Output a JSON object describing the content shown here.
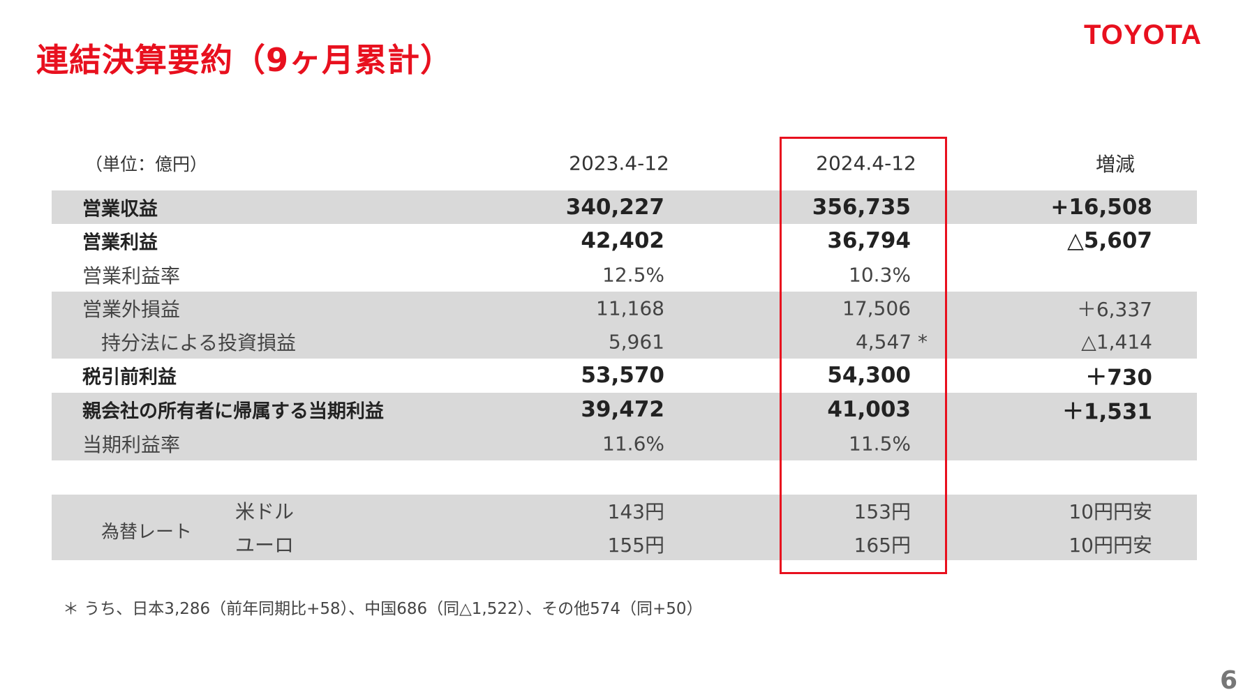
{
  "title": "連結決算要約（9ヶ月累計）",
  "logo": "TOYOTA",
  "page_number": "6",
  "header": {
    "unit": "（単位：億円）",
    "col1": "2023.4-12",
    "col2": "2024.4-12",
    "col3": "増減"
  },
  "rows": [
    {
      "label": "営業収益",
      "v1": "340,227",
      "v2": "356,735",
      "v3": "+16,508"
    },
    {
      "label": "営業利益",
      "v1": "42,402",
      "v2": "36,794",
      "v3": "△5,607"
    },
    {
      "label": "営業利益率",
      "v1": "12.5%",
      "v2": "10.3%",
      "v3": ""
    },
    {
      "label": "営業外損益",
      "v1": "11,168",
      "v2": "17,506",
      "v3": "＋6,337"
    },
    {
      "label": "持分法による投資損益",
      "v1": "5,961",
      "v2": "4,547 *",
      "v3": "△1,414"
    },
    {
      "label": "税引前利益",
      "v1": "53,570",
      "v2": "54,300",
      "v3": "＋730"
    },
    {
      "label": "親会社の所有者に帰属する当期利益",
      "v1": "39,472",
      "v2": "41,003",
      "v3": "＋1,531"
    },
    {
      "label": "当期利益率",
      "v1": "11.6%",
      "v2": "11.5%",
      "v3": ""
    }
  ],
  "fx": {
    "label": "為替レート",
    "rows": [
      {
        "currency": "米ドル",
        "v1": "143円",
        "v2": "153円",
        "v3": "10円円安"
      },
      {
        "currency": "ユーロ",
        "v1": "155円",
        "v2": "165円",
        "v3": "10円円安"
      }
    ]
  },
  "footnote": "＊ うち、日本3,286（前年同期比+58）、中国686（同△1,522）、その他574（同+50）",
  "colors": {
    "accent": "#e8101e",
    "band": "#d9d9d9"
  }
}
